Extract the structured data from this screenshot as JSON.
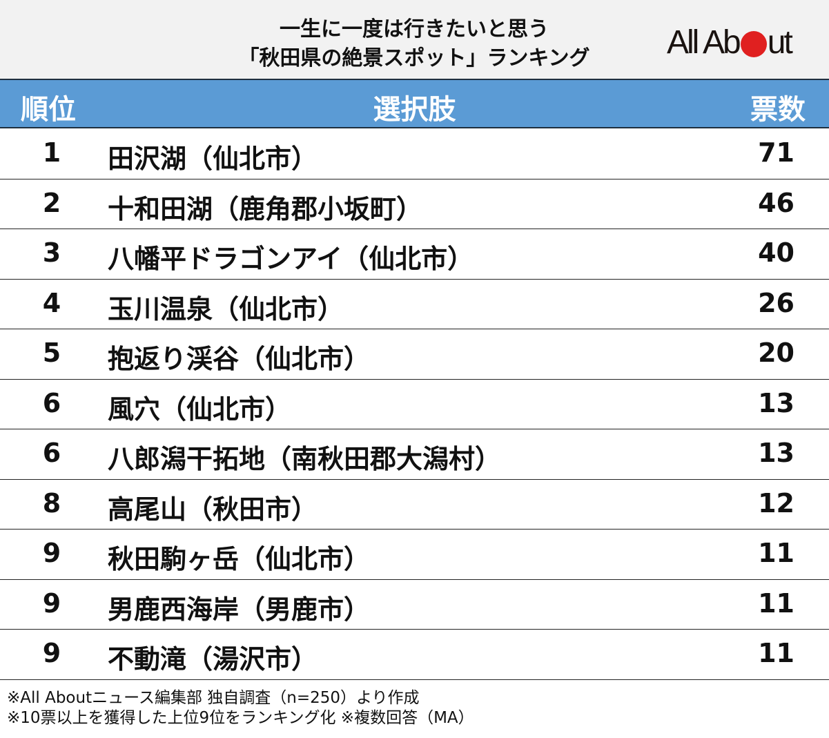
{
  "title": {
    "line1": "一生に一度は行きたいと思う",
    "line2": "「秋田県の絶景スポット」ランキング"
  },
  "logo": {
    "text_left": "All Ab",
    "text_right": "ut",
    "dot_color": "#e02020"
  },
  "header": {
    "rank": "順位",
    "choice": "選択肢",
    "votes": "票数",
    "bg_color": "#5b9bd5"
  },
  "rows": [
    {
      "rank": "1",
      "name": "田沢湖（仙北市）",
      "votes": "71"
    },
    {
      "rank": "2",
      "name": "十和田湖（鹿角郡小坂町）",
      "votes": "46"
    },
    {
      "rank": "3",
      "name": "八幡平ドラゴンアイ（仙北市）",
      "votes": "40"
    },
    {
      "rank": "4",
      "name": "玉川温泉（仙北市）",
      "votes": "26"
    },
    {
      "rank": "5",
      "name": "抱返り渓谷（仙北市）",
      "votes": "20"
    },
    {
      "rank": "6",
      "name": "風穴（仙北市）",
      "votes": "13"
    },
    {
      "rank": "6",
      "name": "八郎潟干拓地（南秋田郡大潟村）",
      "votes": "13"
    },
    {
      "rank": "8",
      "name": "高尾山（秋田市）",
      "votes": "12"
    },
    {
      "rank": "9",
      "name": "秋田駒ヶ岳（仙北市）",
      "votes": "11"
    },
    {
      "rank": "9",
      "name": "男鹿西海岸（男鹿市）",
      "votes": "11"
    },
    {
      "rank": "9",
      "name": "不動滝（湯沢市）",
      "votes": "11"
    }
  ],
  "notes": {
    "line1": "※All Aboutニュース編集部 独自調査（n=250）より作成",
    "line2": "※10票以上を獲得した上位9位をランキング化 ※複数回答（MA）"
  },
  "chart_data": {
    "type": "table",
    "title": "一生に一度は行きたいと思う「秋田県の絶景スポット」ランキング",
    "columns": [
      "順位",
      "選択肢",
      "票数"
    ],
    "categories": [
      "田沢湖（仙北市）",
      "十和田湖（鹿角郡小坂町）",
      "八幡平ドラゴンアイ（仙北市）",
      "玉川温泉（仙北市）",
      "抱返り渓谷（仙北市）",
      "風穴（仙北市）",
      "八郎潟干拓地（南秋田郡大潟村）",
      "高尾山（秋田市）",
      "秋田駒ヶ岳（仙北市）",
      "男鹿西海岸（男鹿市）",
      "不動滝（湯沢市）"
    ],
    "ranks": [
      1,
      2,
      3,
      4,
      5,
      6,
      6,
      8,
      9,
      9,
      9
    ],
    "values": [
      71,
      46,
      40,
      26,
      20,
      13,
      13,
      12,
      11,
      11,
      11
    ],
    "annotations": [
      "※All Aboutニュース編集部 独自調査（n=250）より作成",
      "※10票以上を獲得した上位9位をランキング化 ※複数回答（MA）"
    ]
  }
}
